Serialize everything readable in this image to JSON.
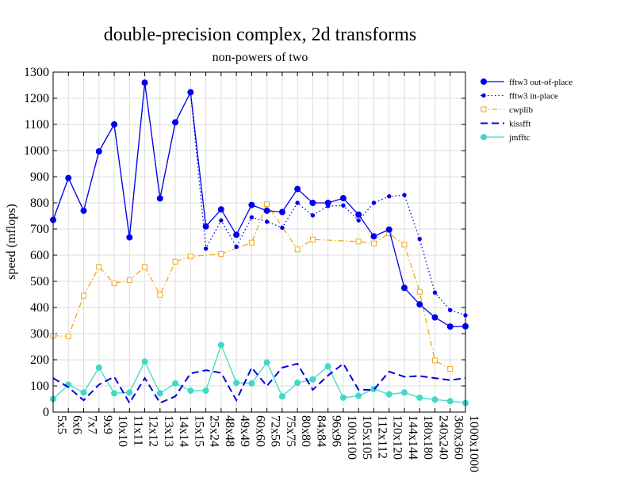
{
  "chart_data": {
    "type": "line",
    "title": "double-precision complex, 2d transforms",
    "subtitle": "non-powers of two",
    "xlabel": "",
    "ylabel": "speed (mflops)",
    "ylim": [
      0,
      1300
    ],
    "yticks": [
      0,
      100,
      200,
      300,
      400,
      500,
      600,
      700,
      800,
      900,
      1000,
      1100,
      1200,
      1300
    ],
    "grid": true,
    "legend_position": "top-right",
    "categories": [
      "5x5",
      "6x6",
      "7x7",
      "9x9",
      "10x10",
      "11x11",
      "12x12",
      "13x13",
      "14x14",
      "15x15",
      "25x24",
      "48x48",
      "49x49",
      "60x60",
      "72x56",
      "75x75",
      "80x80",
      "84x84",
      "96x96",
      "100x100",
      "105x105",
      "112x112",
      "120x120",
      "144x144",
      "180x180",
      "240x240",
      "360x360",
      "1000x1000"
    ],
    "series": [
      {
        "name": "fftw3 out-of-place",
        "color": "#0000ee",
        "style": "solid",
        "marker": "filled-circle",
        "values": [
          735,
          895,
          770,
          997,
          1100,
          668,
          1260,
          817,
          1108,
          1223,
          710,
          775,
          678,
          792,
          770,
          765,
          853,
          800,
          800,
          818,
          755,
          672,
          698,
          475,
          412,
          362,
          327,
          328
        ]
      },
      {
        "name": "fftw3 in-place",
        "color": "#0000ee",
        "style": "dotted",
        "marker": "small-filled-circle",
        "values": [
          735,
          895,
          770,
          997,
          1100,
          668,
          1260,
          817,
          1108,
          1223,
          625,
          733,
          632,
          745,
          728,
          705,
          800,
          752,
          788,
          790,
          733,
          800,
          825,
          830,
          662,
          457,
          390,
          370
        ]
      },
      {
        "name": "cwplib",
        "color": "#f0a818",
        "style": "dashdot",
        "marker": "open-square",
        "values": [
          292,
          290,
          445,
          555,
          492,
          505,
          555,
          448,
          575,
          595,
          null,
          605,
          null,
          648,
          795,
          null,
          622,
          660,
          null,
          null,
          652,
          645,
          683,
          640,
          460,
          197,
          165,
          null
        ]
      },
      {
        "name": "kissfft",
        "color": "#0000dd",
        "style": "dashed",
        "marker": "none",
        "values": [
          130,
          95,
          45,
          105,
          135,
          35,
          130,
          35,
          60,
          148,
          160,
          150,
          45,
          170,
          100,
          170,
          185,
          85,
          140,
          185,
          85,
          85,
          155,
          135,
          138,
          130,
          122,
          130
        ]
      },
      {
        "name": "jmfftc",
        "color": "#40d8c8",
        "style": "solid",
        "marker": "filled-circle",
        "values": [
          50,
          105,
          75,
          170,
          72,
          75,
          193,
          72,
          110,
          82,
          82,
          257,
          112,
          110,
          190,
          60,
          112,
          125,
          175,
          55,
          62,
          88,
          68,
          75,
          55,
          48,
          42,
          35
        ]
      }
    ]
  }
}
